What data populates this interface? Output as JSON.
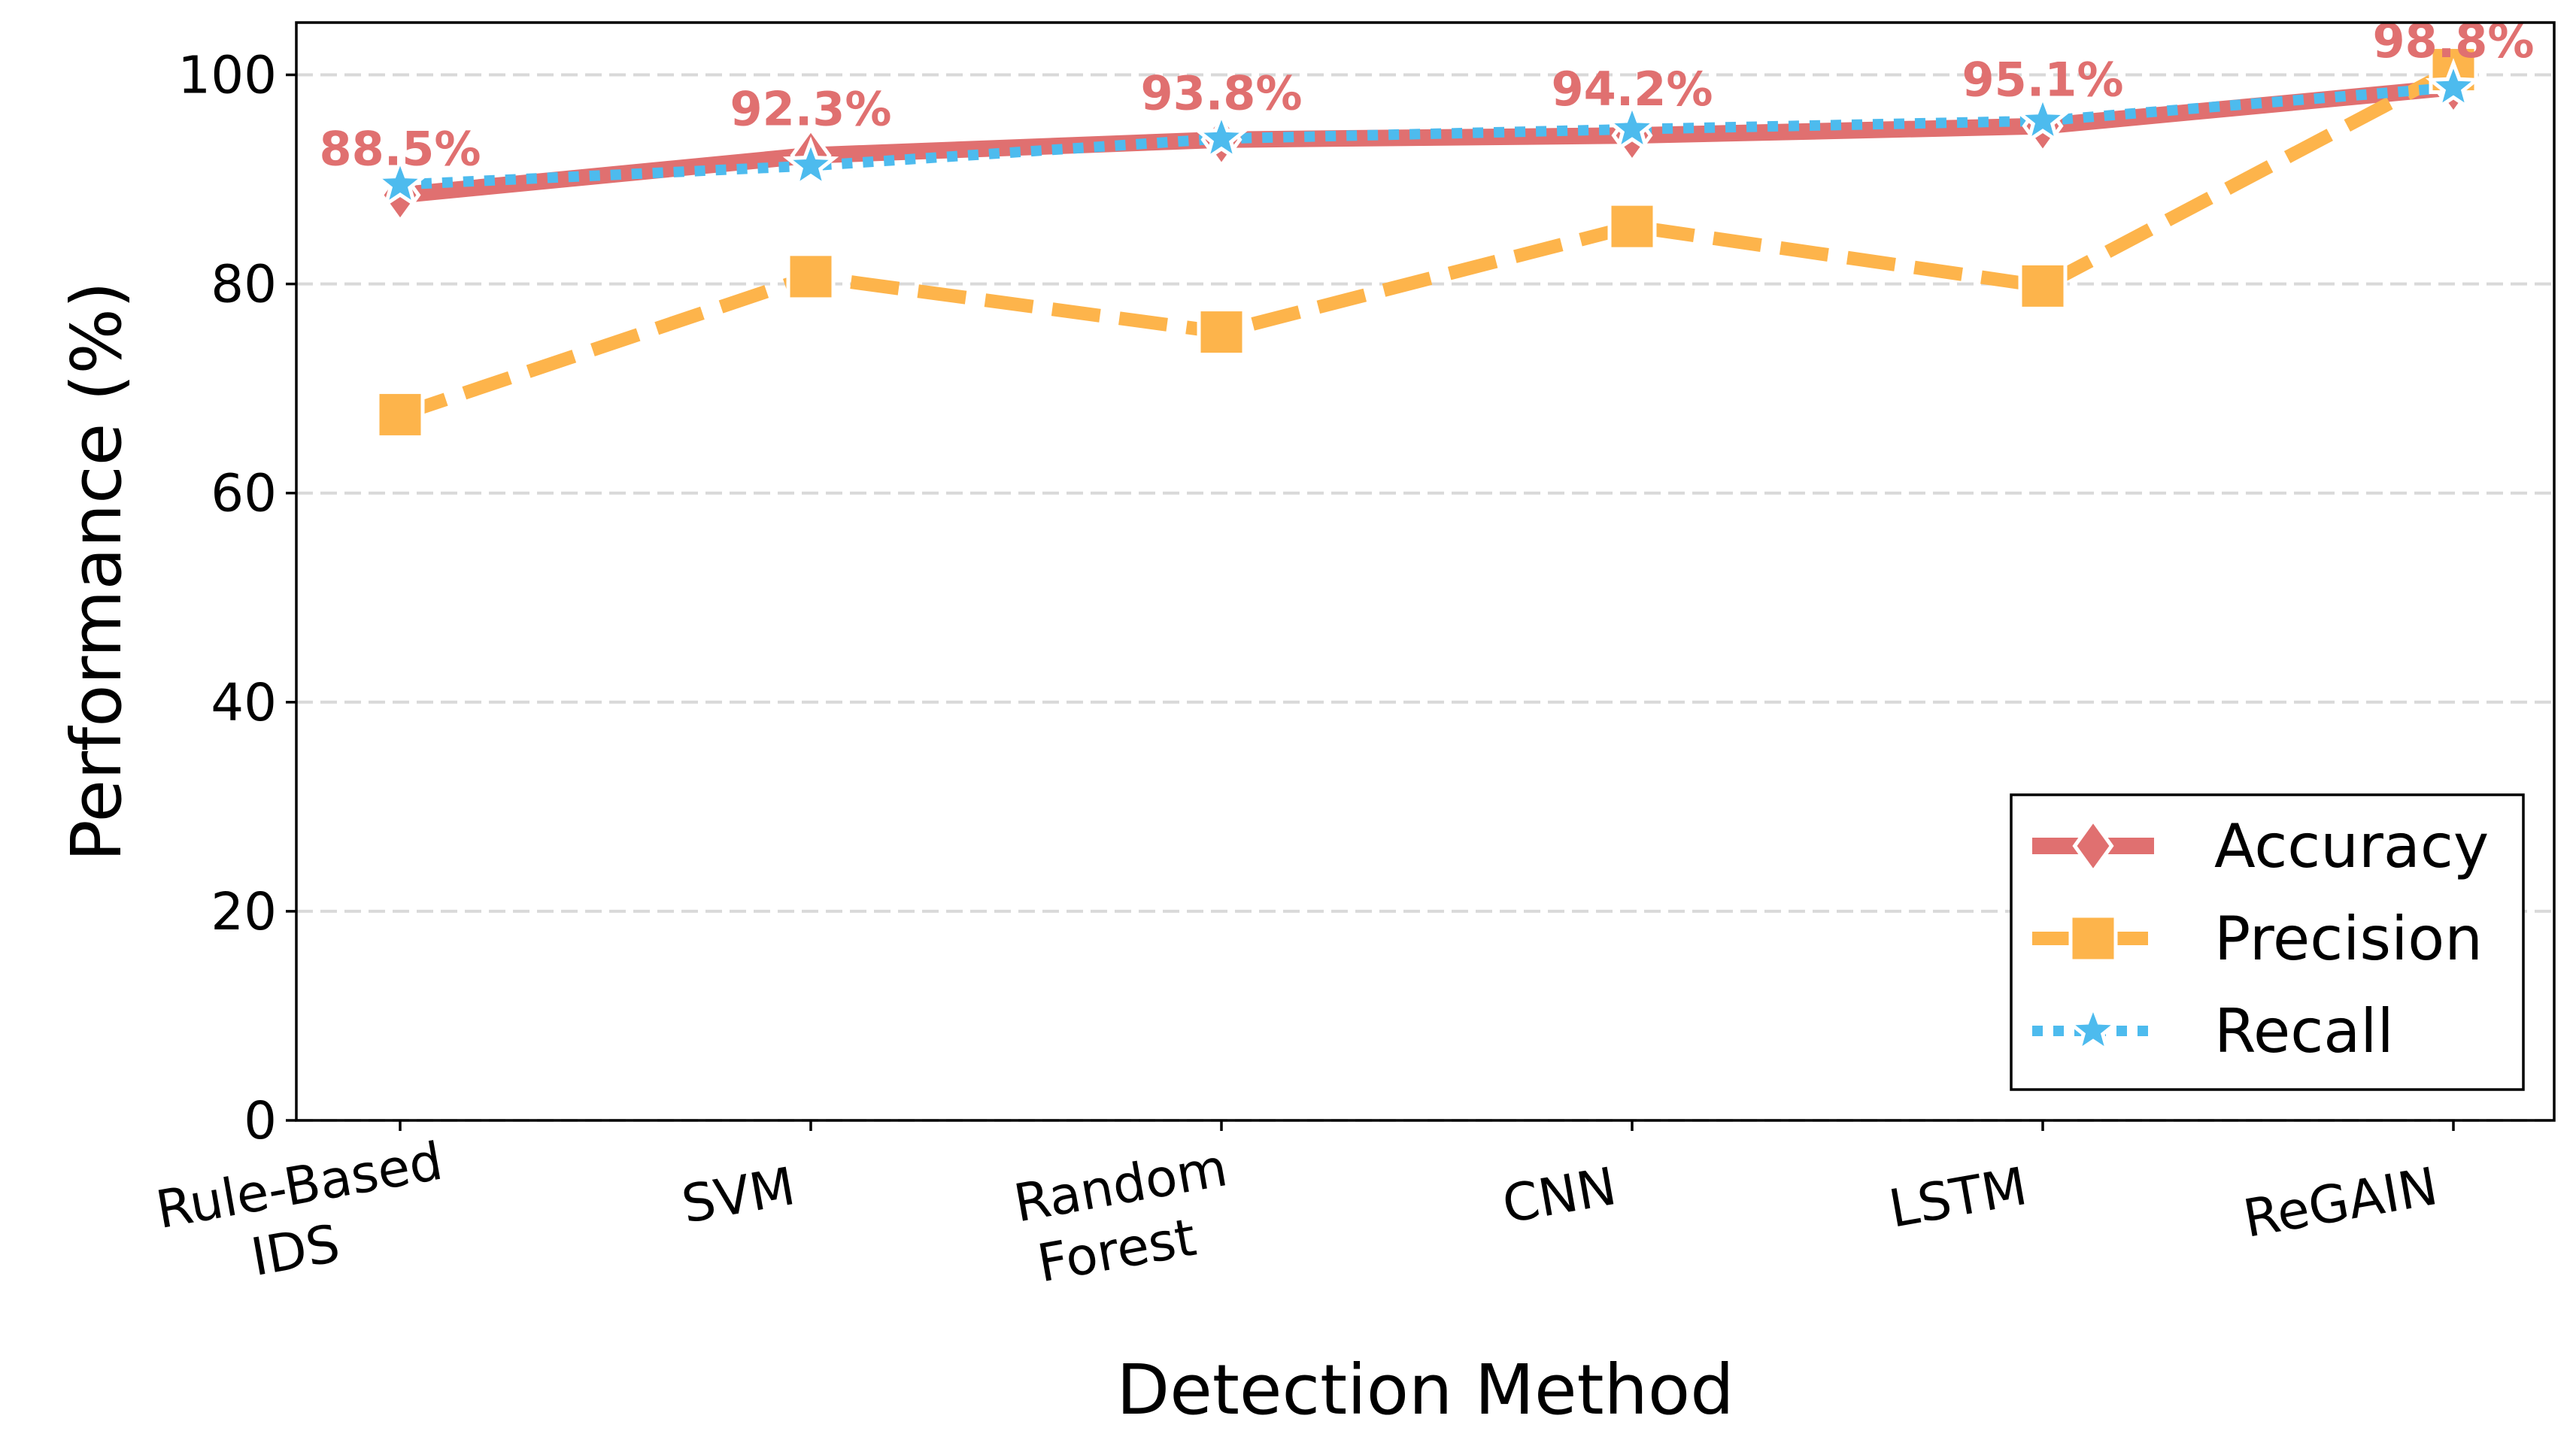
{
  "chart_data": {
    "type": "line",
    "title": "",
    "xlabel": "Detection Method",
    "ylabel": "Performance (%)",
    "ylim": [
      0,
      105
    ],
    "yticks": [
      0,
      20,
      40,
      60,
      80,
      100
    ],
    "grid": "horizontal dashed",
    "legend_position": "lower-right",
    "categories": [
      [
        "Rule-Based",
        "IDS"
      ],
      [
        "SVM"
      ],
      [
        "Random",
        "Forest"
      ],
      [
        "CNN"
      ],
      [
        "LSTM"
      ],
      [
        "ReGAIN"
      ]
    ],
    "series": [
      {
        "name": "Accuracy",
        "values": [
          88.5,
          92.3,
          93.8,
          94.2,
          95.1,
          98.8
        ],
        "color": "#e07070",
        "line_style": "solid",
        "marker": "diamond",
        "data_labels": [
          "88.5%",
          "92.3%",
          "93.8%",
          "94.2%",
          "95.1%",
          "98.8%"
        ]
      },
      {
        "name": "Precision",
        "values": [
          67.5,
          80.7,
          75.4,
          85.5,
          79.8,
          100.5
        ],
        "color": "#fdb44b",
        "line_style": "dashed",
        "marker": "square"
      },
      {
        "name": "Recall",
        "values": [
          89.5,
          91.3,
          93.9,
          94.8,
          95.6,
          98.8
        ],
        "color": "#4dbbee",
        "line_style": "dotted",
        "marker": "star"
      }
    ]
  }
}
